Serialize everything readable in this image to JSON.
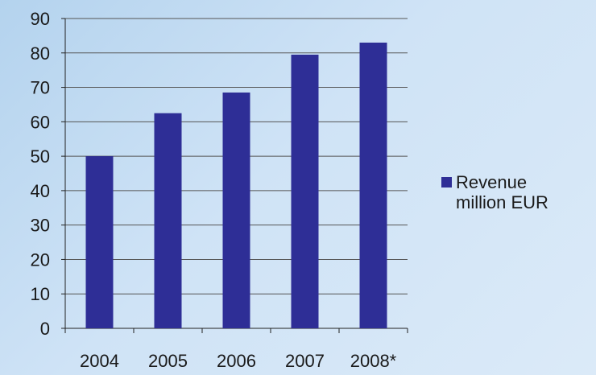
{
  "chart_data": {
    "type": "bar",
    "categories": [
      "2004",
      "2005",
      "2006",
      "2007",
      "2008*"
    ],
    "series": [
      {
        "name": "Revenue million EUR",
        "values": [
          50,
          62.5,
          68.5,
          79.5,
          83
        ]
      }
    ],
    "ylim": [
      0,
      90
    ],
    "yticks": [
      0,
      10,
      20,
      30,
      40,
      50,
      60,
      70,
      80,
      90
    ],
    "grid": true,
    "legend_position": "right",
    "legend": {
      "line1": "Revenue",
      "line2": "million EUR"
    },
    "colors": {
      "bar": "#2e2e96",
      "grid": "#555555",
      "axis": "#222222"
    }
  }
}
